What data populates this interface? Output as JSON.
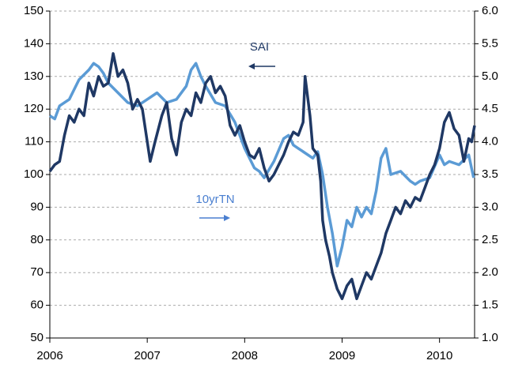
{
  "chart_data": {
    "type": "line",
    "annotations": [
      "SAI",
      "10yrTN"
    ],
    "xlim": [
      2006,
      2010.36
    ],
    "xticks": [
      2006,
      2007,
      2008,
      2009,
      2010
    ],
    "ylim": [
      50,
      150
    ],
    "yticks": [
      50,
      60,
      70,
      80,
      90,
      100,
      110,
      120,
      130,
      140,
      150
    ],
    "y2lim": [
      1,
      6
    ],
    "y2ticks": [
      {
        "value": 1,
        "label": "1.0"
      },
      {
        "value": 1.5,
        "label": "1.5"
      },
      {
        "value": 2,
        "label": "2.0"
      },
      {
        "value": 2.5,
        "label": "2.5"
      },
      {
        "value": 3,
        "label": "3.0"
      },
      {
        "value": 3.5,
        "label": "3.5"
      },
      {
        "value": 4,
        "label": "4.0"
      },
      {
        "value": 4.5,
        "label": "4.5"
      },
      {
        "value": 5,
        "label": "5.0"
      },
      {
        "value": 5.5,
        "label": "5.5"
      },
      {
        "value": 6,
        "label": "6.0"
      }
    ],
    "grid": true,
    "series": [
      {
        "name": "SAI",
        "color": "#1f3864",
        "axis": "y",
        "x": [
          2006.0,
          2006.05,
          2006.1,
          2006.15,
          2006.2,
          2006.25,
          2006.3,
          2006.35,
          2006.4,
          2006.45,
          2006.5,
          2006.55,
          2006.6,
          2006.65,
          2006.7,
          2006.75,
          2006.8,
          2006.85,
          2006.9,
          2006.95,
          2007.0,
          2007.03,
          2007.08,
          2007.15,
          2007.2,
          2007.25,
          2007.3,
          2007.35,
          2007.4,
          2007.45,
          2007.5,
          2007.55,
          2007.6,
          2007.65,
          2007.7,
          2007.75,
          2007.8,
          2007.85,
          2007.9,
          2007.95,
          2008.0,
          2008.05,
          2008.1,
          2008.15,
          2008.2,
          2008.25,
          2008.3,
          2008.35,
          2008.4,
          2008.45,
          2008.5,
          2008.55,
          2008.6,
          2008.62,
          2008.67,
          2008.7,
          2008.75,
          2008.78,
          2008.8,
          2008.83,
          2008.87,
          2008.9,
          2008.95,
          2009.0,
          2009.05,
          2009.1,
          2009.15,
          2009.2,
          2009.25,
          2009.3,
          2009.35,
          2009.4,
          2009.45,
          2009.5,
          2009.55,
          2009.6,
          2009.65,
          2009.7,
          2009.75,
          2009.8,
          2009.85,
          2009.9,
          2009.95,
          2010.0,
          2010.05,
          2010.1,
          2010.15,
          2010.2,
          2010.25,
          2010.3,
          2010.33,
          2010.36
        ],
        "values": [
          101,
          103,
          104,
          112,
          118,
          116,
          120,
          118,
          128,
          124,
          130,
          127,
          128,
          137,
          130,
          132,
          128,
          120,
          123,
          120,
          110,
          104,
          110,
          118,
          122,
          111,
          106,
          116,
          120,
          118,
          125,
          122,
          128,
          130,
          125,
          127,
          124,
          115,
          112,
          115,
          110,
          106,
          105,
          108,
          102,
          98,
          100,
          103,
          106,
          110,
          113,
          112,
          116,
          130,
          118,
          108,
          106,
          98,
          86,
          80,
          75,
          70,
          65,
          62,
          66,
          68,
          62,
          66,
          70,
          68,
          72,
          76,
          82,
          86,
          90,
          88,
          92,
          90,
          93,
          92,
          96,
          100,
          103,
          108,
          116,
          119,
          114,
          112,
          104,
          111,
          110,
          115
        ]
      },
      {
        "name": "10yrTN",
        "color": "#5b9bd5",
        "axis": "y2",
        "x": [
          2006.0,
          2006.05,
          2006.1,
          2006.2,
          2006.3,
          2006.4,
          2006.45,
          2006.5,
          2006.55,
          2006.6,
          2006.7,
          2006.8,
          2006.9,
          2007.0,
          2007.1,
          2007.2,
          2007.3,
          2007.4,
          2007.45,
          2007.5,
          2007.55,
          2007.6,
          2007.7,
          2007.8,
          2007.9,
          2008.0,
          2008.1,
          2008.15,
          2008.2,
          2008.3,
          2008.4,
          2008.45,
          2008.5,
          2008.55,
          2008.6,
          2008.7,
          2008.75,
          2008.8,
          2008.85,
          2008.9,
          2008.95,
          2009.0,
          2009.05,
          2009.1,
          2009.15,
          2009.2,
          2009.25,
          2009.3,
          2009.35,
          2009.4,
          2009.45,
          2009.5,
          2009.6,
          2009.7,
          2009.75,
          2009.8,
          2009.9,
          2010.0,
          2010.05,
          2010.1,
          2010.2,
          2010.3,
          2010.35
        ],
        "values": [
          4.4,
          4.35,
          4.55,
          4.65,
          4.95,
          5.1,
          5.2,
          5.15,
          5.05,
          4.9,
          4.75,
          4.6,
          4.55,
          4.65,
          4.75,
          4.6,
          4.65,
          4.85,
          5.1,
          5.2,
          5.0,
          4.85,
          4.6,
          4.55,
          4.3,
          3.9,
          3.6,
          3.55,
          3.45,
          3.7,
          4.05,
          4.1,
          3.95,
          3.9,
          3.85,
          3.75,
          3.85,
          3.5,
          3.0,
          2.6,
          2.1,
          2.4,
          2.8,
          2.7,
          3.0,
          2.85,
          3.0,
          2.9,
          3.25,
          3.75,
          3.9,
          3.5,
          3.55,
          3.4,
          3.35,
          3.4,
          3.45,
          3.8,
          3.65,
          3.7,
          3.65,
          3.8,
          3.45
        ]
      }
    ]
  }
}
